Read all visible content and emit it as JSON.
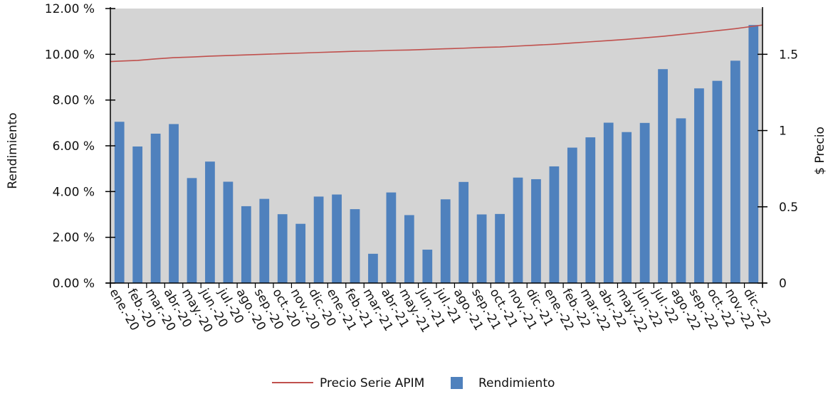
{
  "chart_data": {
    "type": "bar",
    "categories": [
      "ene.-20",
      "feb.-20",
      "mar.-20",
      "abr.-20",
      "may.-20",
      "jun.-20",
      "jul.-20",
      "ago.-20",
      "sep.-20",
      "oct.-20",
      "nov.-20",
      "dic.-20",
      "ene.-21",
      "feb.-21",
      "mar.-21",
      "abr.-21",
      "may.-21",
      "jun.-21",
      "jul.-21",
      "ago.-21",
      "sep.-21",
      "oct.-21",
      "nov.-21",
      "dic.-21",
      "ene.-22",
      "feb.-22",
      "mar.-22",
      "abr.-22",
      "may.-22",
      "jun.-22",
      "jul.-22",
      "ago.-22",
      "sep.-22",
      "oct.-22",
      "nov.-22",
      "dic.-22"
    ],
    "series": [
      {
        "name": "Rendimiento",
        "axis": "left",
        "kind": "bar",
        "color": "#4f81bd",
        "values": [
          7.05,
          5.97,
          6.53,
          6.95,
          4.59,
          5.31,
          4.43,
          3.36,
          3.68,
          3.01,
          2.59,
          3.78,
          3.87,
          3.23,
          1.28,
          3.96,
          2.97,
          1.46,
          3.66,
          4.42,
          3.0,
          3.02,
          4.61,
          4.54,
          5.1,
          5.92,
          6.37,
          7.01,
          6.6,
          7.0,
          9.35,
          7.2,
          8.51,
          8.84,
          9.72,
          11.28
        ]
      },
      {
        "name": "Precio Serie APIM",
        "axis": "right",
        "kind": "line",
        "color": "#c0504d",
        "values": [
          1.455,
          1.46,
          1.47,
          1.478,
          1.482,
          1.488,
          1.492,
          1.496,
          1.5,
          1.504,
          1.508,
          1.512,
          1.516,
          1.52,
          1.522,
          1.526,
          1.528,
          1.532,
          1.536,
          1.54,
          1.545,
          1.548,
          1.554,
          1.56,
          1.566,
          1.574,
          1.582,
          1.59,
          1.598,
          1.608,
          1.618,
          1.63,
          1.642,
          1.655,
          1.668,
          1.684
        ]
      }
    ],
    "title": "",
    "xlabel": "",
    "ylabel": "Rendimiento",
    "y2label": "$ Precio",
    "ylim": [
      0,
      12
    ],
    "y2lim": [
      0,
      1.8
    ],
    "yticks": [
      "0.00 %",
      "2.00 %",
      "4.00 %",
      "6.00 %",
      "8.00 %",
      "10.00 %",
      "12.00 %"
    ],
    "yticks_values": [
      0,
      2,
      4,
      6,
      8,
      10,
      12
    ],
    "y2ticks": [
      "0",
      "0.5",
      "1",
      "1.5"
    ],
    "y2ticks_values": [
      0,
      0.5,
      1,
      1.5
    ],
    "grid": false,
    "plot_background": "#d4d4d4",
    "legend_placement": "bottom-center"
  }
}
